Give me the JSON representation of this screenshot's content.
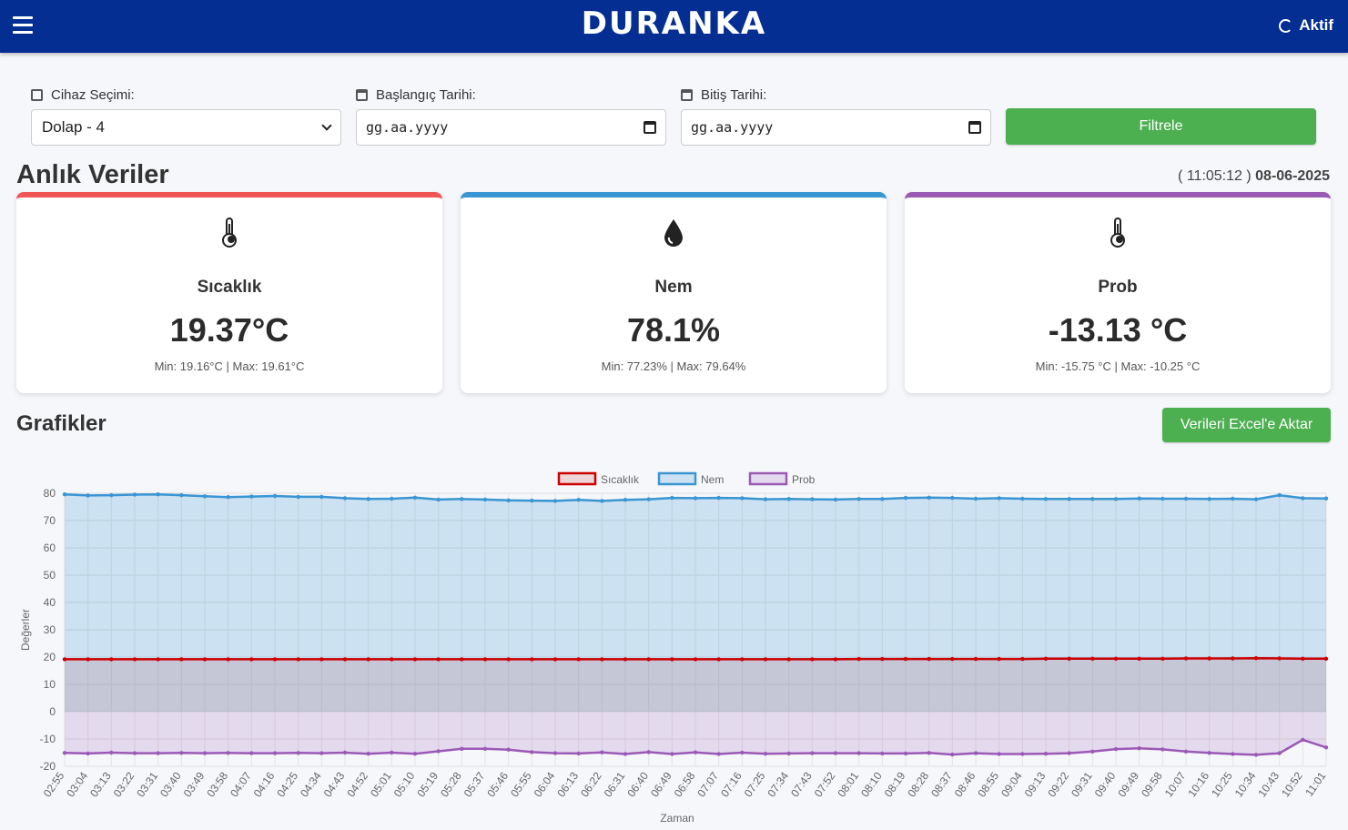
{
  "header": {
    "brand": "DURANKA",
    "status": "Aktif",
    "menu_icon": "hamburger-menu-icon",
    "brand_color": "#052e92"
  },
  "filters": {
    "device": {
      "label": "Cihaz Seçimi:",
      "value": "Dolap - 4"
    },
    "start_date": {
      "label": "Başlangıç Tarihi:",
      "placeholder": "gg.aa.yyyy"
    },
    "end_date": {
      "label": "Bitiş Tarihi:",
      "placeholder": "gg.aa.yyyy"
    },
    "submit": "Filtrele"
  },
  "live": {
    "title": "Anlık Veriler",
    "time_open": "( ",
    "time": "11:05:12",
    "time_close": " )",
    "date": "08-06-2025",
    "cards": [
      {
        "title": "Sıcaklık",
        "value": "19.37°C",
        "minmax": "Min: 19.16°C | Max: 19.61°C",
        "color": "#f05454",
        "icon": "thermometer-icon"
      },
      {
        "title": "Nem",
        "value": "78.1%",
        "minmax": "Min: 77.23% | Max: 79.64%",
        "color": "#3a95d3",
        "icon": "droplet-icon"
      },
      {
        "title": "Prob",
        "value": "-13.13 °C",
        "minmax": "Min: -15.75 °C | Max: -10.25 °C",
        "color": "#9b59b6",
        "icon": "thermometer-icon"
      }
    ]
  },
  "charts": {
    "title": "Grafikler",
    "export_button": "Verileri Excel'e Aktar"
  },
  "chart_data": {
    "type": "line",
    "x": [
      "02:55",
      "03:04",
      "03:13",
      "03:22",
      "03:31",
      "03:40",
      "03:49",
      "03:58",
      "04:07",
      "04:16",
      "04:25",
      "04:34",
      "04:43",
      "04:52",
      "05:01",
      "05:10",
      "05:19",
      "05:28",
      "05:37",
      "05:46",
      "05:55",
      "06:04",
      "06:13",
      "06:22",
      "06:31",
      "06:40",
      "06:49",
      "06:58",
      "07:07",
      "07:16",
      "07:25",
      "07:34",
      "07:43",
      "07:52",
      "08:01",
      "08:10",
      "08:19",
      "08:28",
      "08:37",
      "08:46",
      "08:55",
      "09:04",
      "09:13",
      "09:22",
      "09:31",
      "09:40",
      "09:49",
      "09:58",
      "10:07",
      "10:16",
      "10:25",
      "10:34",
      "10:43",
      "10:52",
      "11:01"
    ],
    "series": [
      {
        "name": "Sıcaklık",
        "color": "#cc0000",
        "fill": "rgba(204,60,60,0.18)",
        "values": [
          19.2,
          19.2,
          19.2,
          19.2,
          19.2,
          19.2,
          19.2,
          19.2,
          19.2,
          19.2,
          19.2,
          19.2,
          19.2,
          19.2,
          19.2,
          19.2,
          19.2,
          19.2,
          19.2,
          19.2,
          19.2,
          19.2,
          19.2,
          19.2,
          19.2,
          19.2,
          19.2,
          19.2,
          19.2,
          19.2,
          19.2,
          19.2,
          19.2,
          19.2,
          19.3,
          19.3,
          19.3,
          19.3,
          19.3,
          19.3,
          19.3,
          19.3,
          19.4,
          19.4,
          19.4,
          19.4,
          19.4,
          19.4,
          19.5,
          19.5,
          19.5,
          19.6,
          19.5,
          19.4,
          19.4
        ]
      },
      {
        "name": "Nem",
        "color": "#3a95d3",
        "fill": "rgba(58,149,211,0.22)",
        "values": [
          79.6,
          79.2,
          79.3,
          79.5,
          79.6,
          79.3,
          78.9,
          78.6,
          78.8,
          79.0,
          78.7,
          78.7,
          78.2,
          77.9,
          78.0,
          78.4,
          77.7,
          77.9,
          77.7,
          77.4,
          77.3,
          77.2,
          77.6,
          77.2,
          77.6,
          77.8,
          78.3,
          78.2,
          78.3,
          78.2,
          77.8,
          77.9,
          77.8,
          77.7,
          77.9,
          77.9,
          78.3,
          78.4,
          78.3,
          78.0,
          78.2,
          78.0,
          77.9,
          77.9,
          77.9,
          77.9,
          78.1,
          78.0,
          78.0,
          77.9,
          78.0,
          77.8,
          79.3,
          78.2,
          78.1
        ]
      },
      {
        "name": "Prob",
        "color": "#9b59b6",
        "fill": "rgba(155,89,182,0.18)",
        "values": [
          -15.1,
          -15.3,
          -15.0,
          -15.2,
          -15.2,
          -15.1,
          -15.2,
          -15.1,
          -15.2,
          -15.2,
          -15.1,
          -15.2,
          -15.0,
          -15.4,
          -15.0,
          -15.4,
          -14.5,
          -13.6,
          -13.6,
          -13.9,
          -14.8,
          -15.2,
          -15.3,
          -14.9,
          -15.5,
          -14.8,
          -15.5,
          -14.9,
          -15.5,
          -15.0,
          -15.4,
          -15.3,
          -15.2,
          -15.2,
          -15.2,
          -15.3,
          -15.3,
          -15.1,
          -15.7,
          -15.2,
          -15.5,
          -15.5,
          -15.4,
          -15.2,
          -14.6,
          -13.7,
          -13.4,
          -13.8,
          -14.6,
          -15.1,
          -15.5,
          -15.8,
          -15.2,
          -10.3,
          -13.1
        ]
      }
    ],
    "xlabel": "Zaman",
    "ylabel": "Değerler",
    "ylim": [
      -20,
      80
    ],
    "yticks": [
      -20,
      -10,
      0,
      10,
      20,
      30,
      40,
      50,
      60,
      70,
      80
    ],
    "grid": true,
    "legend": "top-center"
  }
}
